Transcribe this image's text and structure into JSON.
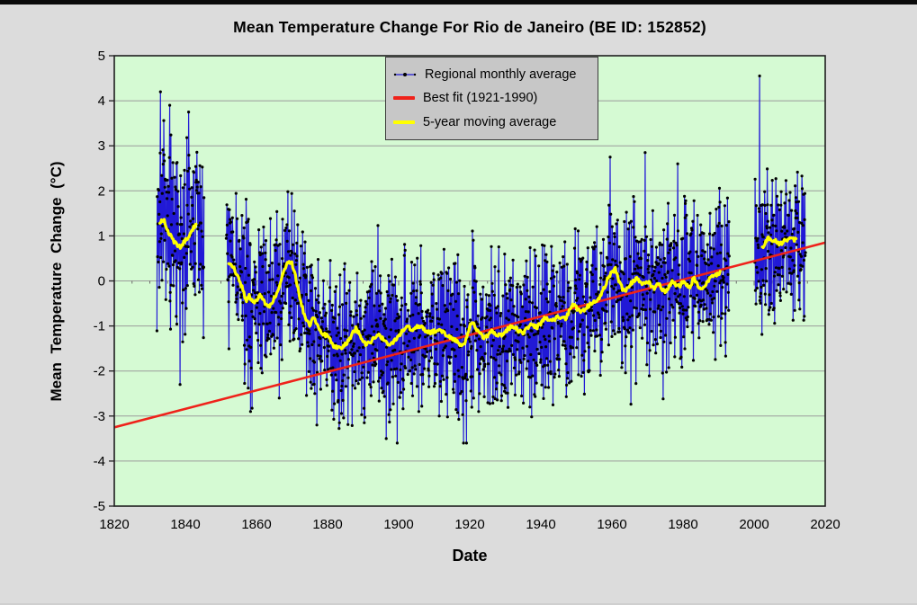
{
  "page": {
    "top_bar_color": "#0a0a0a",
    "background_color": "#dcdcdc"
  },
  "chart_data": {
    "type": "line",
    "title": "Mean Temperature Change For Rio de Janeiro (BE ID: 152852)",
    "xlabel": "Date",
    "ylabel": "Mean Temperature Change (°C)",
    "xlim": [
      1820,
      2020
    ],
    "ylim": [
      -5,
      5
    ],
    "x_ticks": [
      1820,
      1840,
      1860,
      1880,
      1900,
      1920,
      1940,
      1960,
      1980,
      2000,
      2020
    ],
    "y_ticks": [
      5,
      4,
      3,
      2,
      1,
      0,
      -1,
      -2,
      -3,
      -4,
      -5
    ],
    "x_minor_tick_step": 5,
    "grid": "horizontal-only",
    "zero_axis_has_minor_ticks": true,
    "plot_bg_color": "#d5fad3",
    "grid_color": "#9b9b9b",
    "border_color": "#1f1f1f",
    "legend": {
      "position": "inside-top-center",
      "bg_color": "#c7c7c7",
      "items": [
        {
          "label": "Regional monthly average",
          "color": "#2119d6",
          "marker": "line-with-dots"
        },
        {
          "label": "Best fit (1921-1990)",
          "color": "#ef221a",
          "marker": "thick-line"
        },
        {
          "label": "5-year moving average",
          "color": "#ffff00",
          "marker": "thick-line"
        }
      ]
    },
    "best_fit": {
      "label": "Best fit (1921-1990)",
      "color": "#ef221a",
      "x": [
        1820,
        2020
      ],
      "y": [
        -3.25,
        0.85
      ]
    },
    "moving_average": {
      "label": "5-year moving average",
      "color": "#ffff00",
      "segments": [
        [
          [
            1832.8,
            1.3
          ],
          [
            1834,
            1.35
          ],
          [
            1835,
            1.1
          ],
          [
            1836,
            1.0
          ],
          [
            1837,
            0.85
          ],
          [
            1838,
            0.75
          ],
          [
            1839,
            0.78
          ],
          [
            1840,
            0.9
          ],
          [
            1841,
            1.0
          ],
          [
            1842,
            1.15
          ],
          [
            1843.2,
            1.3
          ]
        ],
        [
          [
            1852.2,
            0.4
          ],
          [
            1853.5,
            0.3
          ],
          [
            1855,
            0.05
          ],
          [
            1856,
            -0.15
          ],
          [
            1857,
            -0.45
          ],
          [
            1858,
            -0.32
          ],
          [
            1859,
            -0.5
          ],
          [
            1860,
            -0.42
          ],
          [
            1861,
            -0.33
          ],
          [
            1862,
            -0.45
          ],
          [
            1863,
            -0.52
          ],
          [
            1864,
            -0.55
          ],
          [
            1865,
            -0.38
          ],
          [
            1866,
            -0.25
          ],
          [
            1867,
            0.0
          ],
          [
            1868,
            0.3
          ],
          [
            1869,
            0.42
          ],
          [
            1870,
            0.38
          ],
          [
            1871,
            0.1
          ],
          [
            1872,
            -0.3
          ],
          [
            1873,
            -0.62
          ],
          [
            1874,
            -0.88
          ],
          [
            1875,
            -1.0
          ],
          [
            1876,
            -0.8
          ],
          [
            1877,
            -0.95
          ],
          [
            1878,
            -1.12
          ],
          [
            1879,
            -1.2
          ],
          [
            1880,
            -1.22
          ],
          [
            1881,
            -1.35
          ],
          [
            1882,
            -1.48
          ],
          [
            1883,
            -1.45
          ],
          [
            1884,
            -1.5
          ],
          [
            1885,
            -1.4
          ],
          [
            1886,
            -1.32
          ],
          [
            1887,
            -1.18
          ],
          [
            1888,
            -1.05
          ],
          [
            1889,
            -1.2
          ],
          [
            1890,
            -1.32
          ],
          [
            1891,
            -1.42
          ],
          [
            1892,
            -1.35
          ],
          [
            1893,
            -1.28
          ],
          [
            1894,
            -1.18
          ],
          [
            1895,
            -1.25
          ],
          [
            1896,
            -1.32
          ],
          [
            1897,
            -1.4
          ],
          [
            1898,
            -1.38
          ],
          [
            1899,
            -1.32
          ],
          [
            1900,
            -1.22
          ],
          [
            1901,
            -1.12
          ],
          [
            1902,
            -1.0
          ],
          [
            1903,
            -1.05
          ],
          [
            1904,
            -1.08
          ],
          [
            1905,
            -1.02
          ],
          [
            1906,
            -1.0
          ],
          [
            1907,
            -1.08
          ],
          [
            1908,
            -1.12
          ],
          [
            1909,
            -1.15
          ],
          [
            1910,
            -1.12
          ],
          [
            1911,
            -1.08
          ],
          [
            1912,
            -1.1
          ],
          [
            1913,
            -1.18
          ],
          [
            1914,
            -1.22
          ],
          [
            1915,
            -1.28
          ],
          [
            1916,
            -1.3
          ],
          [
            1917,
            -1.4
          ],
          [
            1918,
            -1.42
          ],
          [
            1919,
            -1.3
          ],
          [
            1920,
            -1.0
          ],
          [
            1921,
            -0.95
          ],
          [
            1922,
            -1.1
          ],
          [
            1923,
            -1.18
          ],
          [
            1924,
            -1.25
          ],
          [
            1925,
            -1.22
          ],
          [
            1926,
            -1.12
          ],
          [
            1927,
            -1.15
          ],
          [
            1928,
            -1.2
          ],
          [
            1929,
            -1.22
          ],
          [
            1930,
            -1.12
          ],
          [
            1931,
            -1.05
          ],
          [
            1932,
            -1.0
          ],
          [
            1933,
            -1.05
          ],
          [
            1934,
            -1.12
          ],
          [
            1935,
            -1.15
          ],
          [
            1936,
            -1.05
          ],
          [
            1937,
            -0.98
          ],
          [
            1938,
            -1.0
          ],
          [
            1939,
            -1.02
          ],
          [
            1940,
            -0.95
          ],
          [
            1941,
            -0.82
          ],
          [
            1942,
            -0.85
          ],
          [
            1943,
            -0.9
          ],
          [
            1944,
            -0.85
          ],
          [
            1945,
            -0.78
          ],
          [
            1946,
            -0.82
          ],
          [
            1947,
            -0.85
          ],
          [
            1948,
            -0.65
          ],
          [
            1949,
            -0.5
          ],
          [
            1950,
            -0.6
          ],
          [
            1951,
            -0.7
          ],
          [
            1952,
            -0.65
          ],
          [
            1953,
            -0.58
          ],
          [
            1954,
            -0.52
          ],
          [
            1955,
            -0.48
          ],
          [
            1956,
            -0.42
          ],
          [
            1957,
            -0.32
          ],
          [
            1958,
            -0.12
          ],
          [
            1959,
            0.08
          ],
          [
            1960,
            0.2
          ],
          [
            1961,
            0.26
          ],
          [
            1962,
            0.0
          ],
          [
            1963,
            -0.18
          ],
          [
            1964,
            -0.2
          ],
          [
            1965,
            -0.08
          ],
          [
            1966,
            -0.02
          ],
          [
            1967,
            0.05
          ],
          [
            1968,
            -0.05
          ],
          [
            1969,
            -0.08
          ],
          [
            1970,
            0.0
          ],
          [
            1971,
            -0.1
          ],
          [
            1972,
            -0.15
          ],
          [
            1973,
            -0.02
          ],
          [
            1974,
            -0.2
          ],
          [
            1975,
            -0.25
          ],
          [
            1976,
            -0.15
          ],
          [
            1977,
            -0.02
          ],
          [
            1978,
            -0.08
          ],
          [
            1979,
            -0.12
          ],
          [
            1980,
            -0.02
          ],
          [
            1981,
            -0.08
          ],
          [
            1982,
            -0.15
          ],
          [
            1983,
            0.08
          ],
          [
            1984,
            -0.08
          ],
          [
            1985,
            -0.18
          ],
          [
            1986,
            -0.1
          ],
          [
            1987,
            0.0
          ],
          [
            1988,
            0.12
          ],
          [
            1989,
            0.1
          ],
          [
            1990.5,
            0.2
          ]
        ],
        [
          [
            2002.3,
            0.72
          ],
          [
            2003,
            0.85
          ],
          [
            2004,
            0.95
          ],
          [
            2005,
            0.85
          ],
          [
            2006,
            0.9
          ],
          [
            2007,
            0.82
          ],
          [
            2008,
            0.86
          ],
          [
            2009,
            0.9
          ],
          [
            2010,
            0.95
          ],
          [
            2011,
            0.92
          ],
          [
            2012,
            0.9
          ]
        ]
      ]
    },
    "monthly_series": {
      "label": "Regional monthly average",
      "line_color": "#2119d6",
      "marker_color": "#000000",
      "seed": 7,
      "points_per_year": 12,
      "segments": [
        {
          "start": 1832.0,
          "end": 1845.3,
          "amplitude": 1.3
        },
        {
          "start": 1851.5,
          "end": 1993.0,
          "amplitude": 1.05
        },
        {
          "start": 2000.2,
          "end": 2014.5,
          "amplitude": 1.0
        }
      ],
      "outliers": [
        [
          1833.0,
          4.2
        ],
        [
          1835.6,
          3.9
        ],
        [
          1840.9,
          3.75
        ],
        [
          1838.5,
          -2.3
        ],
        [
          1858.3,
          -2.9
        ],
        [
          1866.4,
          -2.6
        ],
        [
          1877.0,
          -3.2
        ],
        [
          1890.3,
          -3.15
        ],
        [
          1896.5,
          -3.5
        ],
        [
          1911.4,
          -3.0
        ],
        [
          1922.5,
          -2.9
        ],
        [
          1959.5,
          2.75
        ],
        [
          1969.3,
          2.85
        ],
        [
          1978.5,
          2.6
        ],
        [
          2001.5,
          4.55
        ]
      ],
      "value_clamp": [
        -3.6,
        4.6
      ]
    }
  }
}
